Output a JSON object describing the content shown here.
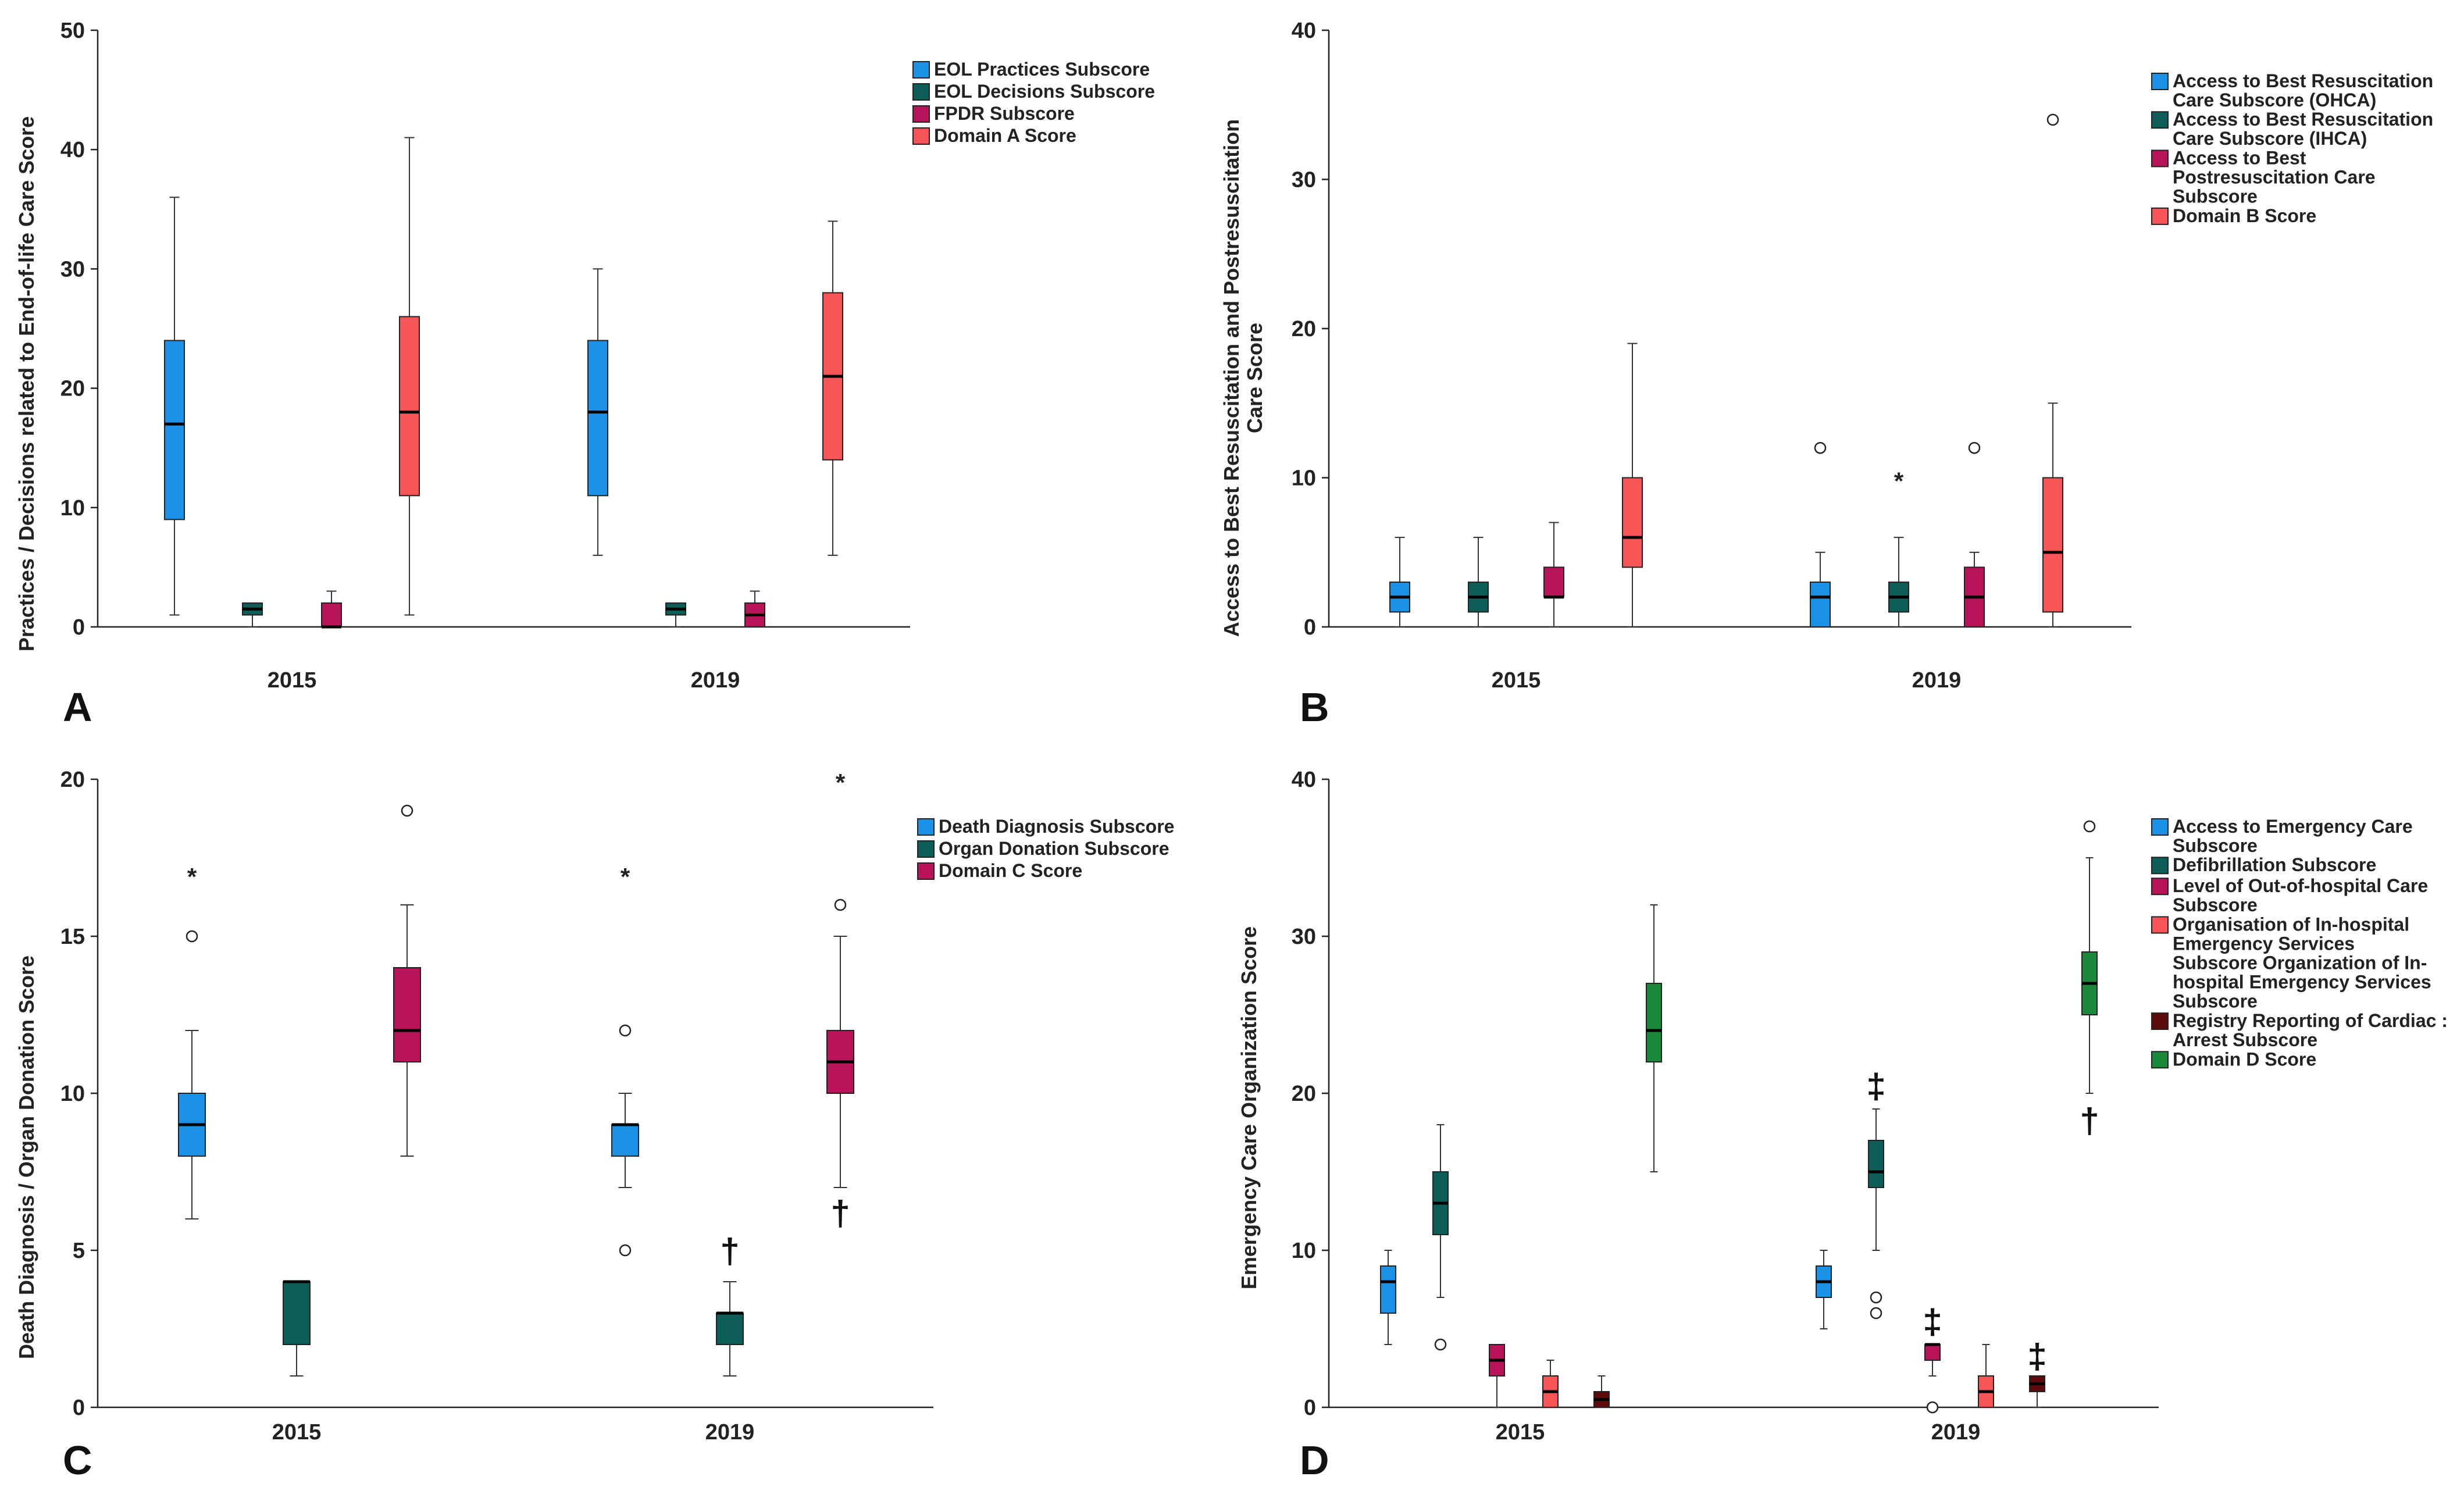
{
  "chart_data": [
    {
      "panel": "A",
      "type": "box",
      "ylabel": "Practices / Decisions related to End-of-life Care Score",
      "ylim": [
        0,
        50
      ],
      "yticks": [
        0,
        10,
        20,
        30,
        40,
        50
      ],
      "categories": [
        "2015",
        "2019"
      ],
      "legend_position": "top-right",
      "series": [
        {
          "name": "EOL Practices Subscore",
          "color": "#1b92e6",
          "boxes": [
            {
              "whisker_low": 1,
              "q1": 9,
              "median": 17,
              "q3": 24,
              "whisker_high": 36,
              "outliers": []
            },
            {
              "whisker_low": 6,
              "q1": 11,
              "median": 18,
              "q3": 24,
              "whisker_high": 30,
              "outliers": []
            }
          ]
        },
        {
          "name": "EOL Decisions Subscore",
          "color": "#0d5e58",
          "boxes": [
            {
              "whisker_low": 0,
              "q1": 1,
              "median": 1.5,
              "q3": 2,
              "whisker_high": 2,
              "outliers": []
            },
            {
              "whisker_low": 0,
              "q1": 1,
              "median": 1.5,
              "q3": 2,
              "whisker_high": 2,
              "outliers": []
            }
          ]
        },
        {
          "name": "FPDR Subscore",
          "color": "#b8145a",
          "boxes": [
            {
              "whisker_low": 0,
              "q1": 0,
              "median": 0,
              "q3": 2,
              "whisker_high": 3,
              "outliers": []
            },
            {
              "whisker_low": 0,
              "q1": 0,
              "median": 1,
              "q3": 2,
              "whisker_high": 3,
              "outliers": []
            }
          ]
        },
        {
          "name": "Domain A Score",
          "color": "#f75558",
          "boxes": [
            {
              "whisker_low": 1,
              "q1": 11,
              "median": 18,
              "q3": 26,
              "whisker_high": 41,
              "outliers": []
            },
            {
              "whisker_low": 6,
              "q1": 14,
              "median": 21,
              "q3": 28,
              "whisker_high": 34,
              "outliers": []
            }
          ]
        }
      ]
    },
    {
      "panel": "B",
      "type": "box",
      "ylabel_lines": [
        "Access to Best Resuscitation and Postresuscitation",
        "Care Score"
      ],
      "ylim": [
        0,
        40
      ],
      "yticks": [
        0,
        10,
        20,
        30,
        40
      ],
      "categories": [
        "2015",
        "2019"
      ],
      "legend_position": "top-right",
      "series": [
        {
          "name_lines": [
            "Access to Best Resuscitation",
            "Care Subscore (OHCA)"
          ],
          "color": "#1b92e6",
          "boxes": [
            {
              "whisker_low": 0,
              "q1": 1,
              "median": 2,
              "q3": 3,
              "whisker_high": 6,
              "outliers": []
            },
            {
              "whisker_low": 0,
              "q1": 0,
              "median": 2,
              "q3": 3,
              "whisker_high": 5,
              "outliers": [
                {
                  "value": 12,
                  "symbol": "o"
                }
              ]
            }
          ]
        },
        {
          "name_lines": [
            "Access to Best Resuscitation",
            "Care Subscore (IHCA)"
          ],
          "color": "#0d5e58",
          "boxes": [
            {
              "whisker_low": 0,
              "q1": 1,
              "median": 2,
              "q3": 3,
              "whisker_high": 6,
              "outliers": []
            },
            {
              "whisker_low": 0,
              "q1": 1,
              "median": 2,
              "q3": 3,
              "whisker_high": 6,
              "outliers": [
                {
                  "value": 10,
                  "symbol": "*"
                }
              ]
            }
          ]
        },
        {
          "name_lines": [
            "Access to Best",
            "Postresuscitation Care",
            "Subscore"
          ],
          "color": "#b8145a",
          "boxes": [
            {
              "whisker_low": 0,
              "q1": 2,
              "median": 2,
              "q3": 4,
              "whisker_high": 7,
              "outliers": []
            },
            {
              "whisker_low": 0,
              "q1": 0,
              "median": 2,
              "q3": 4,
              "whisker_high": 5,
              "outliers": [
                {
                  "value": 12,
                  "symbol": "o"
                }
              ]
            }
          ]
        },
        {
          "name_lines": [
            "Domain B Score"
          ],
          "color": "#f75558",
          "boxes": [
            {
              "whisker_low": 0,
              "q1": 4,
              "median": 6,
              "q3": 10,
              "whisker_high": 19,
              "outliers": []
            },
            {
              "whisker_low": 0,
              "q1": 1,
              "median": 5,
              "q3": 10,
              "whisker_high": 15,
              "outliers": [
                {
                  "value": 34,
                  "symbol": "o"
                }
              ]
            }
          ]
        }
      ]
    },
    {
      "panel": "C",
      "type": "box",
      "ylabel": "Death Diagnosis / Organ Donation Score",
      "ylim": [
        0,
        20
      ],
      "yticks": [
        0,
        5,
        10,
        15,
        20
      ],
      "categories": [
        "2015",
        "2019"
      ],
      "legend_position": "top-right",
      "series": [
        {
          "name": "Death Diagnosis Subscore",
          "color": "#1b92e6",
          "boxes": [
            {
              "whisker_low": 6,
              "q1": 8,
              "median": 9,
              "q3": 10,
              "whisker_high": 12,
              "outliers": [
                {
                  "value": 15,
                  "symbol": "o"
                },
                {
                  "value": 17,
                  "symbol": "*"
                }
              ]
            },
            {
              "whisker_low": 7,
              "q1": 8,
              "median": 9,
              "q3": 9,
              "whisker_high": 10,
              "outliers": [
                {
                  "value": 5,
                  "symbol": "o"
                },
                {
                  "value": 12,
                  "symbol": "o"
                },
                {
                  "value": 17,
                  "symbol": "*"
                }
              ]
            }
          ]
        },
        {
          "name": "Organ Donation Subscore",
          "color": "#0d5e58",
          "boxes": [
            {
              "whisker_low": 1,
              "q1": 2,
              "median": 4,
              "q3": 4,
              "whisker_high": 4,
              "outliers": []
            },
            {
              "whisker_low": 1,
              "q1": 2,
              "median": 3,
              "q3": 3,
              "whisker_high": 4,
              "outliers": [],
              "markers": [
                {
                  "value": 5,
                  "symbol": "†"
                }
              ]
            }
          ]
        },
        {
          "name": "Domain C Score",
          "color": "#b8145a",
          "boxes": [
            {
              "whisker_low": 8,
              "q1": 11,
              "median": 12,
              "q3": 14,
              "whisker_high": 16,
              "outliers": [
                {
                  "value": 19,
                  "symbol": "o"
                }
              ]
            },
            {
              "whisker_low": 7,
              "q1": 10,
              "median": 11,
              "q3": 12,
              "whisker_high": 15,
              "outliers": [
                {
                  "value": 16,
                  "symbol": "o"
                },
                {
                  "value": 20,
                  "symbol": "*"
                }
              ],
              "markers": [
                {
                  "value": 6.2,
                  "symbol": "†"
                }
              ]
            }
          ]
        }
      ]
    },
    {
      "panel": "D",
      "type": "box",
      "ylabel": "Emergency Care Organization Score",
      "ylim": [
        0,
        40
      ],
      "yticks": [
        0,
        10,
        20,
        30,
        40
      ],
      "categories": [
        "2015",
        "2019"
      ],
      "legend_position": "top-right",
      "series": [
        {
          "name_lines": [
            "Access to Emergency Care",
            "Subscore"
          ],
          "color": "#1b92e6",
          "boxes": [
            {
              "whisker_low": 4,
              "q1": 6,
              "median": 8,
              "q3": 9,
              "whisker_high": 10,
              "outliers": []
            },
            {
              "whisker_low": 5,
              "q1": 7,
              "median": 8,
              "q3": 9,
              "whisker_high": 10,
              "outliers": []
            }
          ]
        },
        {
          "name_lines": [
            "Defibrillation Subscore"
          ],
          "color": "#0d5e58",
          "boxes": [
            {
              "whisker_low": 7,
              "q1": 11,
              "median": 13,
              "q3": 15,
              "whisker_high": 18,
              "outliers": [
                {
                  "value": 4,
                  "symbol": "o"
                }
              ]
            },
            {
              "whisker_low": 10,
              "q1": 14,
              "median": 15,
              "q3": 17,
              "whisker_high": 19,
              "outliers": [
                {
                  "value": 6,
                  "symbol": "o"
                },
                {
                  "value": 7,
                  "symbol": "o"
                }
              ],
              "markers": [
                {
                  "value": 20.5,
                  "symbol": "‡"
                }
              ]
            }
          ]
        },
        {
          "name_lines": [
            "Level of Out-of-hospital Care",
            "Subscore"
          ],
          "color": "#b8145a",
          "boxes": [
            {
              "whisker_low": 0,
              "q1": 2,
              "median": 3,
              "q3": 4,
              "whisker_high": 4,
              "outliers": []
            },
            {
              "whisker_low": 2,
              "q1": 3,
              "median": 4,
              "q3": 4,
              "whisker_high": 4,
              "outliers": [
                {
                  "value": 0,
                  "symbol": "o"
                }
              ],
              "markers": [
                {
                  "value": 5.5,
                  "symbol": "‡"
                }
              ]
            }
          ]
        },
        {
          "name_lines": [
            "Organisation of In-hospital",
            "Emergency Services",
            "Subscore Organization of In-",
            "hospital Emergency Services",
            "Subscore"
          ],
          "color": "#f75558",
          "boxes": [
            {
              "whisker_low": 0,
              "q1": 0,
              "median": 1,
              "q3": 2,
              "whisker_high": 3,
              "outliers": []
            },
            {
              "whisker_low": 0,
              "q1": 0,
              "median": 1,
              "q3": 2,
              "whisker_high": 4,
              "outliers": []
            }
          ]
        },
        {
          "name_lines": [
            "Registry Reporting of Cardiac :",
            "Arrest Subscore"
          ],
          "color": "#5c0a0a",
          "boxes": [
            {
              "whisker_low": 0,
              "q1": 0,
              "median": 0.5,
              "q3": 1,
              "whisker_high": 2,
              "outliers": []
            },
            {
              "whisker_low": 0,
              "q1": 1,
              "median": 1.5,
              "q3": 2,
              "whisker_high": 2,
              "outliers": [],
              "markers": [
                {
                  "value": 3.3,
                  "symbol": "‡"
                }
              ]
            }
          ]
        },
        {
          "name_lines": [
            "Domain D Score"
          ],
          "color": "#1a8a3a",
          "boxes": [
            {
              "whisker_low": 15,
              "q1": 22,
              "median": 24,
              "q3": 27,
              "whisker_high": 32,
              "outliers": []
            },
            {
              "whisker_low": 20,
              "q1": 25,
              "median": 27,
              "q3": 29,
              "whisker_high": 35,
              "outliers": [
                {
                  "value": 37,
                  "symbol": "o"
                }
              ],
              "markers": [
                {
                  "value": 18.3,
                  "symbol": "†"
                }
              ]
            }
          ]
        }
      ]
    }
  ]
}
